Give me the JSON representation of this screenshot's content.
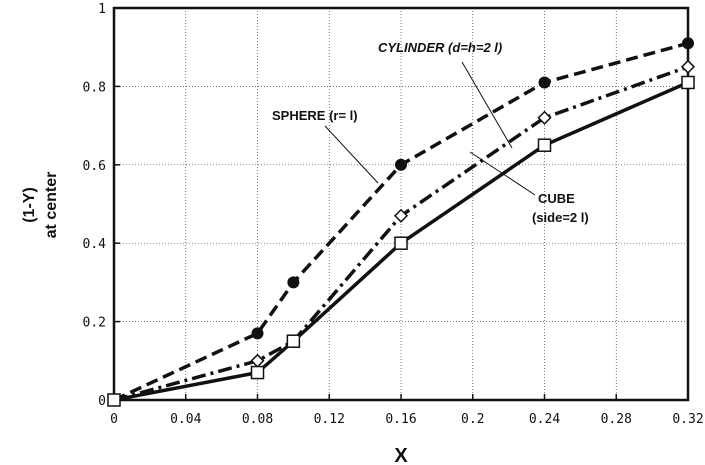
{
  "chart_data": {
    "type": "line",
    "xlabel": "X",
    "ylabel_line1": "(1-Y)",
    "ylabel_line2": "at center",
    "xlim": [
      0,
      0.32
    ],
    "ylim": [
      0,
      1
    ],
    "grid": true,
    "xticks": [
      0,
      0.04,
      0.08,
      0.12,
      0.16,
      0.2,
      0.24,
      0.28,
      0.32
    ],
    "xtick_labels": [
      "0",
      "0.04",
      "0.08",
      "0.12",
      "0.16",
      "0.2",
      "0.24",
      "0.28",
      "0.32"
    ],
    "yticks": [
      0,
      0.2,
      0.4,
      0.6,
      0.8,
      1
    ],
    "ytick_labels": [
      "0",
      "0.2",
      "0.4",
      "0.6",
      "0.8",
      "1"
    ],
    "series": [
      {
        "name": "SPHERE (r= l)",
        "style": "dashed",
        "marker": "filled-circle",
        "color": "#111111",
        "x": [
          0,
          0.08,
          0.1,
          0.16,
          0.24,
          0.32
        ],
        "y": [
          0,
          0.17,
          0.3,
          0.6,
          0.81,
          0.91
        ]
      },
      {
        "name": "CYLINDER (d=h=2 l)",
        "style": "dash-dot",
        "marker": "open-diamond",
        "color": "#111111",
        "x": [
          0,
          0.08,
          0.1,
          0.16,
          0.24,
          0.32
        ],
        "y": [
          0,
          0.1,
          0.15,
          0.47,
          0.72,
          0.85
        ]
      },
      {
        "name_line1": "CUBE",
        "name_line2": "(side=2 l)",
        "style": "solid",
        "marker": "open-square",
        "color": "#111111",
        "x": [
          0,
          0.08,
          0.1,
          0.16,
          0.24,
          0.32
        ],
        "y": [
          0,
          0.07,
          0.15,
          0.4,
          0.65,
          0.81
        ]
      }
    ]
  }
}
